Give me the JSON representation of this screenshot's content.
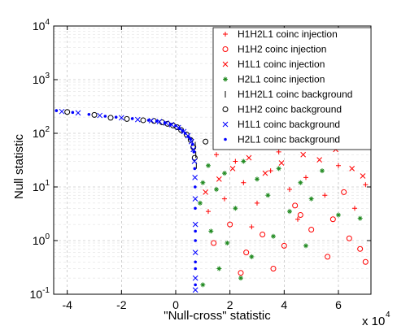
{
  "chart_data": {
    "type": "scatter",
    "xlabel": "\"Null-cross\" statistic",
    "ylabel": "Null statistic",
    "x_multiplier_label": "x 10",
    "x_multiplier_exp": "4",
    "xlim": [
      -45000,
      72000
    ],
    "ylim": [
      0.1,
      10000
    ],
    "yscale": "log",
    "grid": true,
    "legend_position": "top-right",
    "xticks": [
      {
        "value": -40000,
        "label": "-4"
      },
      {
        "value": -20000,
        "label": "-2"
      },
      {
        "value": 0,
        "label": "0"
      },
      {
        "value": 20000,
        "label": "2"
      },
      {
        "value": 40000,
        "label": "4"
      },
      {
        "value": 60000,
        "label": "6"
      }
    ],
    "yticks": [
      {
        "value": 0.1,
        "base": "10",
        "exp": "-1"
      },
      {
        "value": 1,
        "base": "10",
        "exp": "0"
      },
      {
        "value": 10,
        "base": "10",
        "exp": "1"
      },
      {
        "value": 100,
        "base": "10",
        "exp": "2"
      },
      {
        "value": 1000,
        "base": "10",
        "exp": "3"
      },
      {
        "value": 10000,
        "base": "10",
        "exp": "4"
      }
    ],
    "series": [
      {
        "name": "H1H2L1 coinc injection",
        "marker": "plus",
        "color": "#ff0000",
        "points": [
          [
            12000,
            3.5
          ],
          [
            18000,
            6
          ],
          [
            25000,
            12
          ],
          [
            30000,
            5
          ],
          [
            35000,
            20
          ],
          [
            42000,
            9
          ],
          [
            48000,
            15
          ],
          [
            55000,
            7
          ],
          [
            60000,
            25
          ],
          [
            66000,
            4
          ],
          [
            70000,
            11
          ],
          [
            15000,
            40
          ],
          [
            22000,
            30
          ],
          [
            38000,
            45
          ],
          [
            52000,
            55
          ],
          [
            45000,
            2.5
          ],
          [
            28000,
            1.8
          ],
          [
            62000,
            60
          ]
        ]
      },
      {
        "name": "H1H2 coinc injection",
        "marker": "circle",
        "color": "#ff0000",
        "points": [
          [
            14000,
            0.9
          ],
          [
            20000,
            2
          ],
          [
            26000,
            0.6
          ],
          [
            32000,
            1.3
          ],
          [
            40000,
            0.8
          ],
          [
            46000,
            3
          ],
          [
            50000,
            1.6
          ],
          [
            56000,
            0.5
          ],
          [
            58000,
            2.5
          ],
          [
            64000,
            1.1
          ],
          [
            68000,
            0.7
          ],
          [
            70000,
            0.4
          ],
          [
            36000,
            0.3
          ],
          [
            24000,
            0.25
          ],
          [
            44000,
            4.5
          ],
          [
            62000,
            8
          ]
        ]
      },
      {
        "name": "H1L1 coinc injection",
        "marker": "x",
        "color": "#ff0000",
        "points": [
          [
            11000,
            8
          ],
          [
            16000,
            14
          ],
          [
            21000,
            22
          ],
          [
            27000,
            35
          ],
          [
            33000,
            18
          ],
          [
            39000,
            28
          ],
          [
            47000,
            40
          ],
          [
            53000,
            32
          ],
          [
            59000,
            50
          ],
          [
            65000,
            22
          ],
          [
            69000,
            16
          ],
          [
            43000,
            65
          ]
        ]
      },
      {
        "name": "H2L1 coinc injection",
        "marker": "star",
        "color": "#228b22",
        "points": [
          [
            9000,
            5
          ],
          [
            10000,
            12
          ],
          [
            12000,
            25
          ],
          [
            15000,
            9
          ],
          [
            18000,
            18
          ],
          [
            22000,
            4
          ],
          [
            25000,
            30
          ],
          [
            30000,
            14
          ],
          [
            34000,
            7
          ],
          [
            38000,
            22
          ],
          [
            42000,
            3.5
          ],
          [
            46000,
            12
          ],
          [
            50000,
            6
          ],
          [
            54000,
            20
          ],
          [
            60000,
            3
          ],
          [
            68000,
            2.6
          ],
          [
            13000,
            1.5
          ],
          [
            19000,
            0.9
          ],
          [
            28000,
            0.5
          ],
          [
            16000,
            0.3
          ],
          [
            24000,
            0.2
          ],
          [
            10000,
            0.15
          ],
          [
            36000,
            1.2
          ],
          [
            48000,
            0.8
          ]
        ]
      },
      {
        "name": "H1H2L1 coinc background",
        "marker": "vline",
        "color": "#000000",
        "points": [
          [
            7200,
            60
          ],
          [
            7400,
            40
          ],
          [
            7600,
            25
          ]
        ]
      },
      {
        "name": "H1H2 coinc background",
        "marker": "circle",
        "color": "#000000",
        "points": [
          [
            -40000,
            250
          ],
          [
            -30000,
            220
          ],
          [
            -24000,
            195
          ],
          [
            -18000,
            185
          ],
          [
            -12000,
            175
          ],
          [
            -8000,
            170
          ],
          [
            -5000,
            160
          ],
          [
            -3000,
            150
          ],
          [
            -1000,
            140
          ],
          [
            500,
            130
          ],
          [
            2000,
            115
          ],
          [
            4000,
            95
          ],
          [
            5500,
            75
          ],
          [
            6500,
            55
          ],
          [
            7000,
            35
          ],
          [
            11000,
            70
          ]
        ]
      },
      {
        "name": "H1L1 coinc background",
        "marker": "x",
        "color": "#0000ff",
        "points": [
          [
            -42000,
            255
          ],
          [
            -36000,
            240
          ],
          [
            -28000,
            215
          ],
          [
            -20000,
            195
          ],
          [
            -14000,
            180
          ],
          [
            -9000,
            172
          ],
          [
            -6000,
            165
          ],
          [
            -3500,
            155
          ],
          [
            -1500,
            145
          ],
          [
            1000,
            128
          ],
          [
            3000,
            108
          ],
          [
            4500,
            90
          ],
          [
            5800,
            70
          ],
          [
            6500,
            50
          ],
          [
            6900,
            30
          ],
          [
            7100,
            15
          ],
          [
            7200,
            6
          ],
          [
            7250,
            2
          ],
          [
            7250,
            0.6
          ],
          [
            7250,
            0.2
          ],
          [
            7250,
            0.12
          ]
        ]
      },
      {
        "name": "H2L1 coinc background",
        "marker": "dot",
        "color": "#0000ff",
        "points": [
          [
            -44000,
            265
          ],
          [
            -38000,
            245
          ],
          [
            -32000,
            225
          ],
          [
            -26000,
            208
          ],
          [
            -22000,
            200
          ],
          [
            -16000,
            188
          ],
          [
            -10000,
            175
          ],
          [
            -7000,
            168
          ],
          [
            -4000,
            158
          ],
          [
            -2000,
            148
          ],
          [
            0,
            138
          ],
          [
            1500,
            122
          ],
          [
            2500,
            112
          ],
          [
            3500,
            100
          ],
          [
            4800,
            85
          ],
          [
            5500,
            78
          ],
          [
            6200,
            62
          ],
          [
            6700,
            45
          ],
          [
            7000,
            22
          ],
          [
            7150,
            10
          ],
          [
            7200,
            4
          ],
          [
            7250,
            1.5
          ],
          [
            7250,
            1
          ],
          [
            7250,
            0.4
          ],
          [
            7250,
            0.3
          ],
          [
            7250,
            0.15
          ]
        ]
      }
    ]
  }
}
